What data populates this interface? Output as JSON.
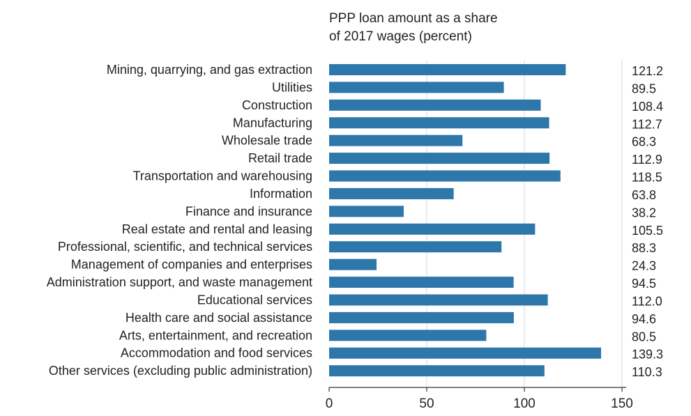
{
  "chart_data": {
    "type": "bar",
    "orientation": "horizontal",
    "title": "PPP loan amount as a share of 2017 wages (percent)",
    "title_lines": [
      "PPP loan amount as a share",
      "of 2017 wages (percent)"
    ],
    "categories": [
      "Mining, quarrying, and gas extraction",
      "Utilities",
      "Construction",
      "Manufacturing",
      "Wholesale trade",
      "Retail trade",
      "Transportation and warehousing",
      "Information",
      "Finance and insurance",
      "Real estate and rental and leasing",
      "Professional, scientific, and technical services",
      "Management of companies and enterprises",
      "Administration support, and waste management",
      "Educational services",
      "Health care and social assistance",
      "Arts, entertainment, and recreation",
      "Accommodation and food services",
      "Other services (excluding public administration)"
    ],
    "values": [
      121.2,
      89.5,
      108.4,
      112.7,
      68.3,
      112.9,
      118.5,
      63.8,
      38.2,
      105.5,
      88.3,
      24.3,
      94.5,
      112.0,
      94.6,
      80.5,
      139.3,
      110.3
    ],
    "value_labels": [
      "121.2",
      "89.5",
      "108.4",
      "112.7",
      "68.3",
      "112.9",
      "118.5",
      "63.8",
      "38.2",
      "105.5",
      "88.3",
      "24.3",
      "94.5",
      "112.0",
      "94.6",
      "80.5",
      "139.3",
      "110.3"
    ],
    "xlim": [
      0,
      150
    ],
    "xticks": [
      0,
      50,
      100,
      150
    ],
    "xtick_labels": [
      "0",
      "50",
      "100",
      "150"
    ],
    "grid": "vertical",
    "bar_color": "#2e77ab",
    "grid_color": "#d9d9d9"
  }
}
